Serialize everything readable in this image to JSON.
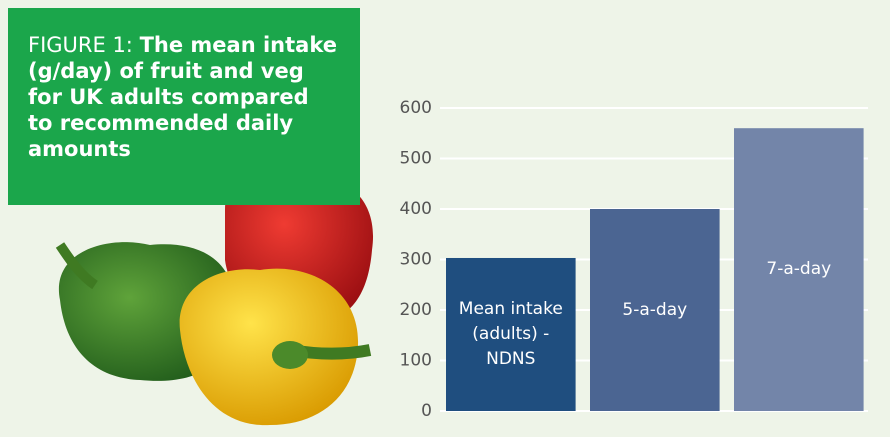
{
  "chart_data": {
    "type": "bar",
    "figure_label": "FIGURE 1:",
    "title": "The mean intake (g/day) of fruit and veg for UK adults compared to recommended daily amounts",
    "categories": [
      "Mean intake (adults) - NDNS",
      "5-a-day",
      "7-a-day"
    ],
    "values": [
      303,
      400,
      560
    ],
    "colors": [
      "#1f4e7f",
      "#4b6592",
      "#7385a9"
    ],
    "ylim": [
      0,
      600
    ],
    "yticks": [
      0,
      100,
      200,
      300,
      400,
      500,
      600
    ],
    "grid": true
  }
}
